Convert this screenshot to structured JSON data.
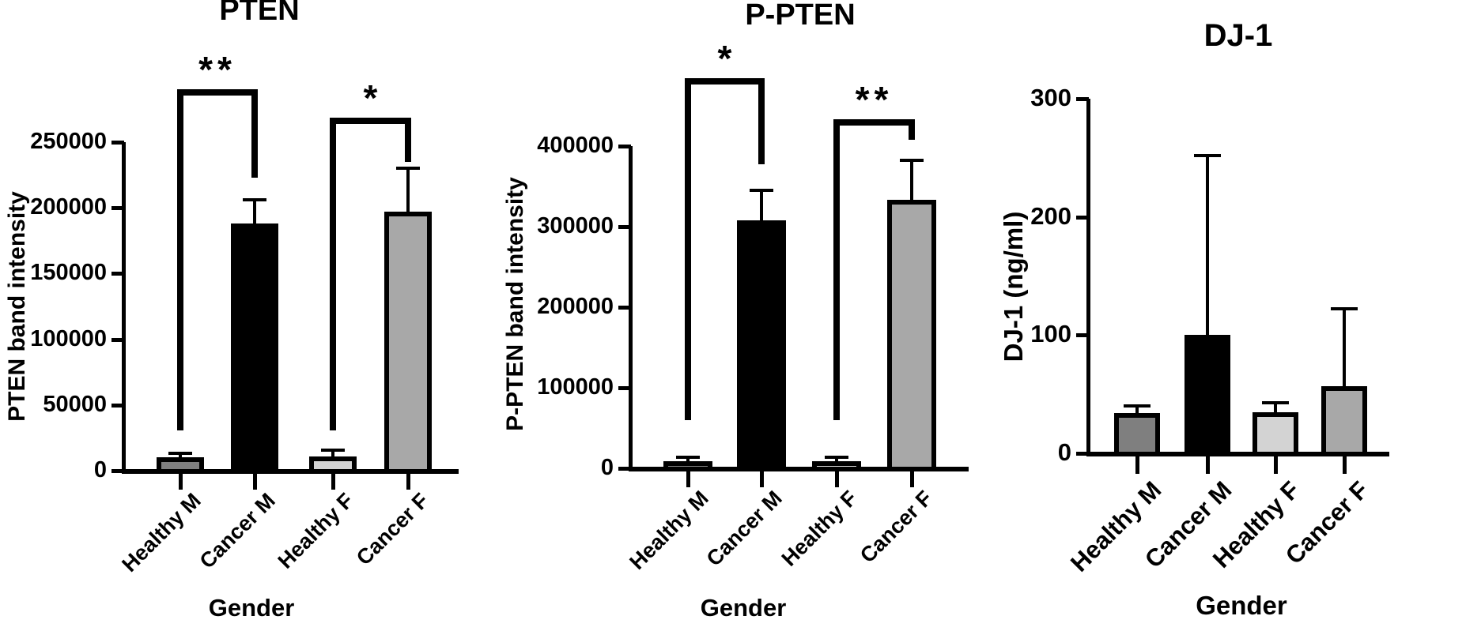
{
  "figure_description": "Three bar charts comparing protein levels by gender and disease state",
  "chart_data": [
    {
      "type": "bar",
      "title": "PTEN",
      "ylabel": "PTEN band intensity",
      "xlabel": "Gender",
      "categories": [
        "Healthy M",
        "Cancer M",
        "Healthy F",
        "Cancer F"
      ],
      "values": [
        10500,
        188000,
        11000,
        197000
      ],
      "errors_plus": [
        3000,
        18000,
        4500,
        33000
      ],
      "yticks": [
        0,
        50000,
        100000,
        150000,
        200000,
        250000
      ],
      "ylim": [
        0,
        250000
      ],
      "grid": "off",
      "legend": "none",
      "bar_colors": [
        "#7f7f7f",
        "#000000",
        "#d3d3d3",
        "#a8a8a8"
      ],
      "significance": [
        {
          "from": "Healthy M",
          "to": "Cancer M",
          "label": "**"
        },
        {
          "from": "Healthy F",
          "to": "Cancer F",
          "label": "*"
        }
      ]
    },
    {
      "type": "bar",
      "title": "P-PTEN",
      "ylabel": "P-PTEN band intensity",
      "xlabel": "Gender",
      "categories": [
        "Healthy M",
        "Cancer M",
        "Healthy F",
        "Cancer F"
      ],
      "values": [
        9000,
        308000,
        8500,
        333000
      ],
      "errors_plus": [
        5000,
        37000,
        5000,
        49000
      ],
      "yticks": [
        0,
        100000,
        200000,
        300000,
        400000
      ],
      "ylim": [
        0,
        400000
      ],
      "grid": "off",
      "legend": "none",
      "bar_colors": [
        "#7f7f7f",
        "#000000",
        "#d3d3d3",
        "#a8a8a8"
      ],
      "significance": [
        {
          "from": "Healthy M",
          "to": "Cancer M",
          "label": "*"
        },
        {
          "from": "Healthy F",
          "to": "Cancer F",
          "label": "**"
        }
      ]
    },
    {
      "type": "bar",
      "title": "DJ-1",
      "ylabel": "DJ-1 (ng/ml)",
      "xlabel": "Gender",
      "categories": [
        "Healthy M",
        "Cancer M",
        "Healthy F",
        "Cancer F"
      ],
      "values": [
        34,
        100,
        35,
        57
      ],
      "errors_plus": [
        6,
        152,
        8,
        65
      ],
      "yticks": [
        0,
        100,
        200,
        300
      ],
      "ylim": [
        0,
        300
      ],
      "grid": "off",
      "legend": "none",
      "bar_colors": [
        "#7f7f7f",
        "#000000",
        "#d3d3d3",
        "#a8a8a8"
      ],
      "significance": []
    }
  ]
}
